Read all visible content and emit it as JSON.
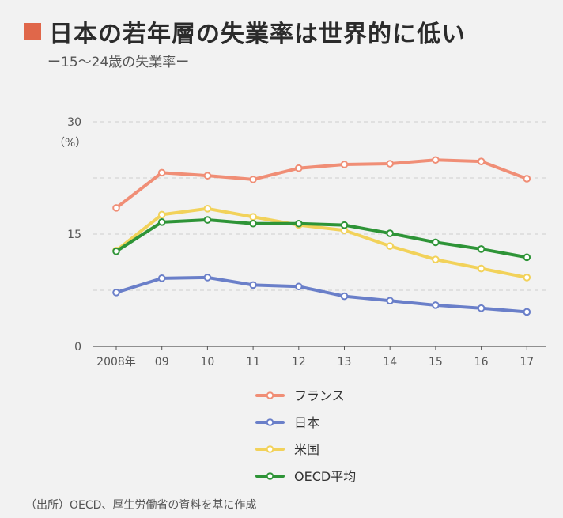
{
  "header": {
    "title": "日本の若年層の失業率は世界的に低い",
    "subtitle": "ー15〜24歳の失業率ー",
    "title_mark_color": "#e0674a"
  },
  "chart_data": {
    "type": "line",
    "unit_label": "（%）",
    "x": [
      "2008年",
      "09",
      "10",
      "11",
      "12",
      "13",
      "14",
      "15",
      "16",
      "17"
    ],
    "ylim": [
      0,
      30
    ],
    "yticks": [
      0,
      15,
      30
    ],
    "grid": true,
    "legend_position": "bottom",
    "series": [
      {
        "name": "フランス",
        "color": "#f08e76",
        "values": [
          18.5,
          23.2,
          22.8,
          22.3,
          23.8,
          24.3,
          24.4,
          24.9,
          24.7,
          22.4
        ]
      },
      {
        "name": "日本",
        "color": "#6a7fc9",
        "values": [
          7.2,
          9.1,
          9.2,
          8.2,
          8.0,
          6.7,
          6.1,
          5.5,
          5.1,
          4.6
        ]
      },
      {
        "name": "米国",
        "color": "#f2d25a",
        "values": [
          12.8,
          17.6,
          18.4,
          17.3,
          16.2,
          15.5,
          13.4,
          11.6,
          10.4,
          9.2
        ]
      },
      {
        "name": "OECD平均",
        "color": "#2e9437",
        "values": [
          12.7,
          16.6,
          16.9,
          16.4,
          16.4,
          16.2,
          15.1,
          13.9,
          13.0,
          11.9
        ]
      }
    ]
  },
  "footer": {
    "source": "（出所）OECD、厚生労働省の資料を基に作成"
  }
}
